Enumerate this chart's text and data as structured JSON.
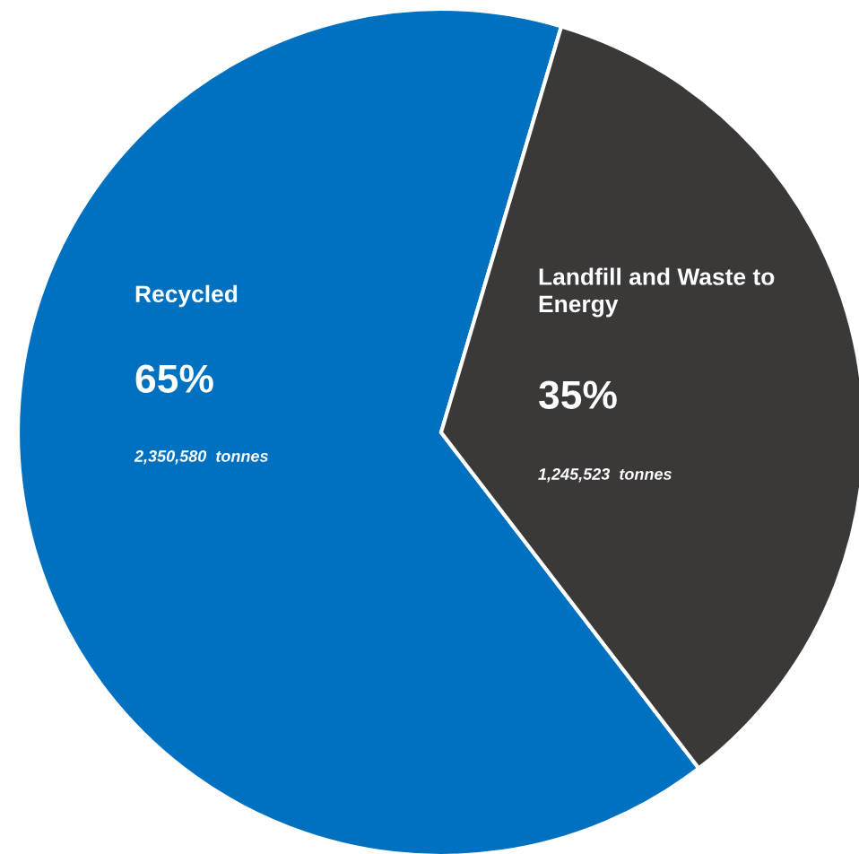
{
  "chart_data": {
    "type": "pie",
    "categories": [
      "Recycled",
      "Landfill and Waste to\nEnergy"
    ],
    "values": [
      65,
      35
    ],
    "colors": [
      "#0070c0",
      "#3b3838"
    ],
    "value_labels": [
      "65%",
      "35%"
    ],
    "annotations": [
      "2,350,580  tonnes",
      "1,245,523  tonnes"
    ]
  }
}
